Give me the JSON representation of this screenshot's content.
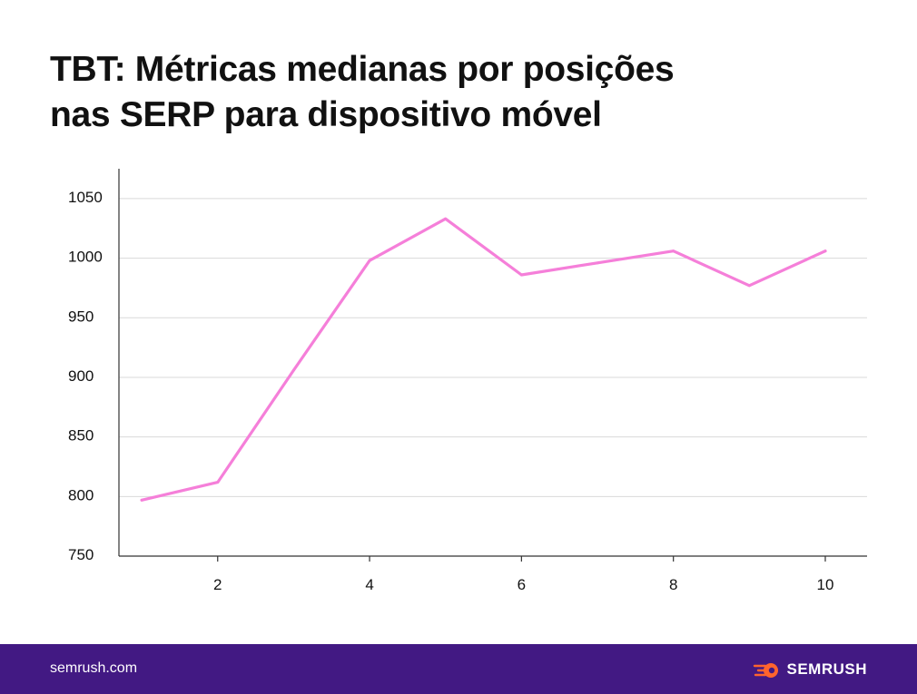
{
  "title_lines": [
    "TBT: Métricas medianas por posições",
    "nas SERP para dispositivo móvel"
  ],
  "footer": {
    "url": "semrush.com",
    "brand": "SEMRUSH"
  },
  "colors": {
    "line": "#f57fd9",
    "footer_bg": "#421983",
    "brand_accent": "#ff642d",
    "grid": "#d9d9d9",
    "axis": "#333333"
  },
  "icons": {
    "brand_logo": "semrush-fireball-icon"
  },
  "chart_data": {
    "type": "line",
    "title": "TBT: Métricas medianas por posições nas SERP para dispositivo móvel",
    "xlabel": "",
    "ylabel": "",
    "x": [
      1,
      2,
      3,
      4,
      5,
      6,
      7,
      8,
      9,
      10
    ],
    "values": [
      797,
      812,
      906,
      998,
      1033,
      986,
      996,
      1006,
      977,
      1006
    ],
    "x_ticks": [
      "2",
      "4",
      "6",
      "8",
      "10"
    ],
    "y_ticks": [
      "750",
      "800",
      "850",
      "900",
      "950",
      "1000",
      "1050"
    ],
    "xlim": [
      0.7,
      10.55
    ],
    "ylim": [
      750,
      1072
    ],
    "grid": true,
    "legend": "none"
  }
}
